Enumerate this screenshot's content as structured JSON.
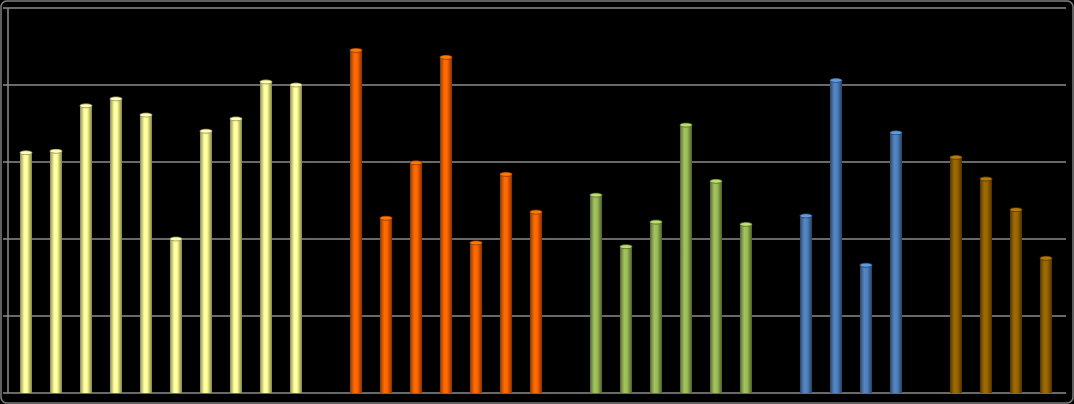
{
  "chart_data": {
    "type": "bar",
    "ylim": [
      0,
      5
    ],
    "yticks": [
      0,
      1,
      2,
      3,
      4,
      5
    ],
    "grid": true,
    "series": [
      {
        "color": "#ffff99",
        "values": [
          3.12,
          3.14,
          3.73,
          3.82,
          3.61,
          2.0,
          3.4,
          3.56,
          4.04,
          4.0
        ]
      },
      {
        "color": "#ff6600",
        "values": [
          4.45,
          2.27,
          2.99,
          4.36,
          1.95,
          2.84,
          2.35
        ]
      },
      {
        "color": "#9bbb59",
        "values": [
          2.57,
          1.9,
          2.22,
          3.48,
          2.75,
          2.19
        ]
      },
      {
        "color": "#4f81bd",
        "values": [
          2.3,
          4.06,
          1.66,
          3.38
        ]
      },
      {
        "color": "#996600",
        "values": [
          3.06,
          2.78,
          2.38,
          1.75
        ]
      }
    ]
  }
}
